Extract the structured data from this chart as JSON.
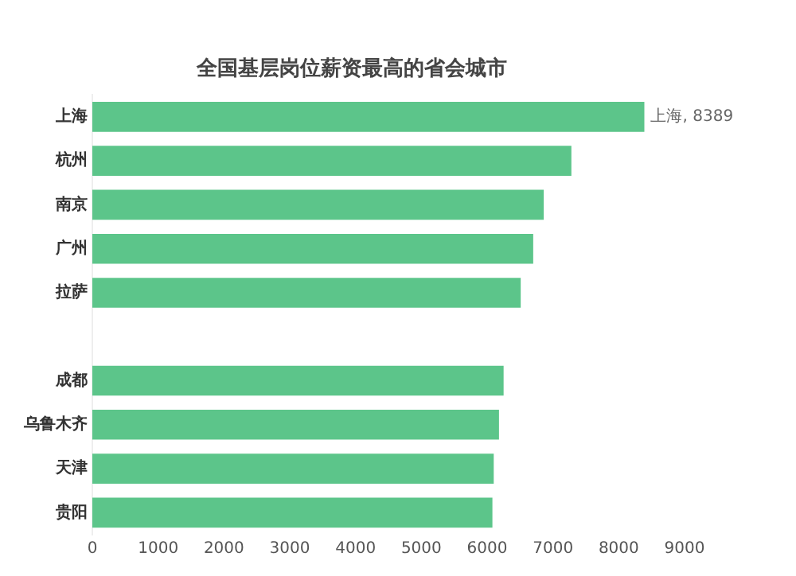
{
  "chart_data": {
    "type": "bar",
    "orientation": "horizontal",
    "title": "全国基层岗位薪资最高的省会城市",
    "categories": [
      "上海",
      "杭州",
      "南京",
      "广州",
      "拉萨",
      null,
      "成都",
      "乌鲁木齐",
      "天津",
      "贵阳"
    ],
    "values": [
      8389,
      7280,
      6860,
      6700,
      6510,
      null,
      6250,
      6180,
      6100,
      6080
    ],
    "value_labels": [
      "上海, 8389",
      null,
      null,
      null,
      null,
      null,
      null,
      null,
      null,
      null
    ],
    "color": "#5cc58a",
    "xlim": [
      0,
      9000
    ],
    "xticks": [
      0,
      1000,
      2000,
      3000,
      4000,
      5000,
      6000,
      7000,
      8000,
      9000
    ],
    "grid": false,
    "legend": false
  }
}
